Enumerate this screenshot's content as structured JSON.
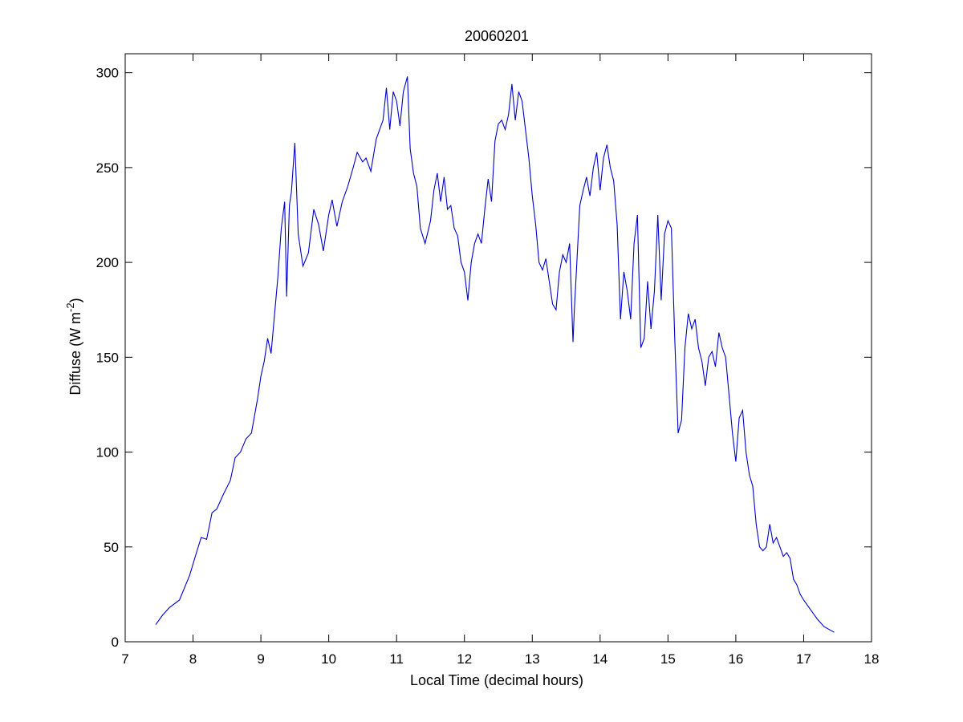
{
  "chart_data": {
    "type": "line",
    "title": "20060201",
    "xlabel": "Local Time (decimal hours)",
    "ylabel": {
      "prefix": "Diffuse (W m",
      "superscript": "-2",
      "suffix": ")"
    },
    "xlim": [
      7,
      18
    ],
    "ylim": [
      0,
      310
    ],
    "xticks": [
      7,
      8,
      9,
      10,
      11,
      12,
      13,
      14,
      15,
      16,
      17,
      18
    ],
    "yticks": [
      0,
      50,
      100,
      150,
      200,
      250,
      300
    ],
    "grid": false,
    "line_color": "#0000cc",
    "series": [
      {
        "x": [
          7.45,
          7.55,
          7.65,
          7.8,
          7.95,
          8.05,
          8.12,
          8.2,
          8.28,
          8.35,
          8.45,
          8.55,
          8.62,
          8.7,
          8.78,
          8.86,
          8.95,
          9.0,
          9.05,
          9.1,
          9.15,
          9.2,
          9.25,
          9.3,
          9.35,
          9.38,
          9.42,
          9.45,
          9.5,
          9.55,
          9.62,
          9.7,
          9.78,
          9.85,
          9.92,
          10.0,
          10.05,
          10.12,
          10.2,
          10.28,
          10.36,
          10.42,
          10.5,
          10.55,
          10.62,
          10.7,
          10.8,
          10.85,
          10.9,
          10.95,
          11.0,
          11.05,
          11.1,
          11.16,
          11.2,
          11.25,
          11.3,
          11.35,
          11.42,
          11.5,
          11.55,
          11.6,
          11.65,
          11.7,
          11.75,
          11.8,
          11.85,
          11.9,
          11.95,
          12.0,
          12.05,
          12.1,
          12.15,
          12.2,
          12.25,
          12.3,
          12.35,
          12.4,
          12.45,
          12.5,
          12.55,
          12.6,
          12.65,
          12.7,
          12.75,
          12.8,
          12.85,
          12.9,
          12.95,
          13.0,
          13.05,
          13.1,
          13.15,
          13.2,
          13.25,
          13.3,
          13.35,
          13.4,
          13.45,
          13.5,
          13.55,
          13.6,
          13.62,
          13.65,
          13.7,
          13.75,
          13.8,
          13.85,
          13.9,
          13.95,
          14.0,
          14.05,
          14.1,
          14.15,
          14.2,
          14.25,
          14.3,
          14.35,
          14.4,
          14.45,
          14.5,
          14.55,
          14.6,
          14.65,
          14.7,
          14.75,
          14.8,
          14.85,
          14.9,
          14.95,
          15.0,
          15.05,
          15.1,
          15.15,
          15.2,
          15.25,
          15.3,
          15.35,
          15.4,
          15.45,
          15.5,
          15.55,
          15.6,
          15.65,
          15.7,
          15.75,
          15.8,
          15.85,
          15.9,
          15.95,
          16.0,
          16.05,
          16.1,
          16.15,
          16.2,
          16.25,
          16.3,
          16.35,
          16.4,
          16.45,
          16.5,
          16.55,
          16.6,
          16.65,
          16.7,
          16.75,
          16.8,
          16.85,
          16.9,
          16.95,
          17.0,
          17.1,
          17.2,
          17.3,
          17.45
        ],
        "y": [
          9,
          14,
          18,
          22,
          35,
          47,
          55,
          54,
          68,
          70,
          78,
          85,
          97,
          100,
          107,
          110,
          128,
          140,
          148,
          160,
          152,
          172,
          192,
          218,
          232,
          182,
          230,
          237,
          263,
          215,
          198,
          205,
          228,
          220,
          206,
          225,
          233,
          219,
          232,
          240,
          250,
          258,
          253,
          255,
          248,
          265,
          275,
          292,
          270,
          290,
          285,
          272,
          290,
          298,
          260,
          247,
          240,
          218,
          210,
          222,
          238,
          247,
          232,
          245,
          228,
          230,
          218,
          214,
          200,
          195,
          180,
          200,
          210,
          215,
          210,
          228,
          244,
          232,
          264,
          273,
          275,
          270,
          278,
          294,
          275,
          290,
          285,
          270,
          255,
          235,
          220,
          200,
          196,
          202,
          190,
          178,
          175,
          195,
          204,
          200,
          210,
          158,
          175,
          195,
          230,
          238,
          245,
          235,
          250,
          258,
          238,
          255,
          262,
          250,
          243,
          220,
          170,
          195,
          185,
          170,
          210,
          225,
          155,
          160,
          190,
          165,
          185,
          225,
          180,
          215,
          222,
          218,
          160,
          110,
          117,
          155,
          173,
          165,
          170,
          155,
          148,
          135,
          150,
          153,
          145,
          163,
          155,
          150,
          130,
          110,
          95,
          118,
          122,
          100,
          88,
          82,
          62,
          50,
          48,
          50,
          62,
          52,
          55,
          50,
          45,
          47,
          44,
          33,
          30,
          25,
          22,
          17,
          12,
          8,
          5
        ]
      }
    ]
  }
}
